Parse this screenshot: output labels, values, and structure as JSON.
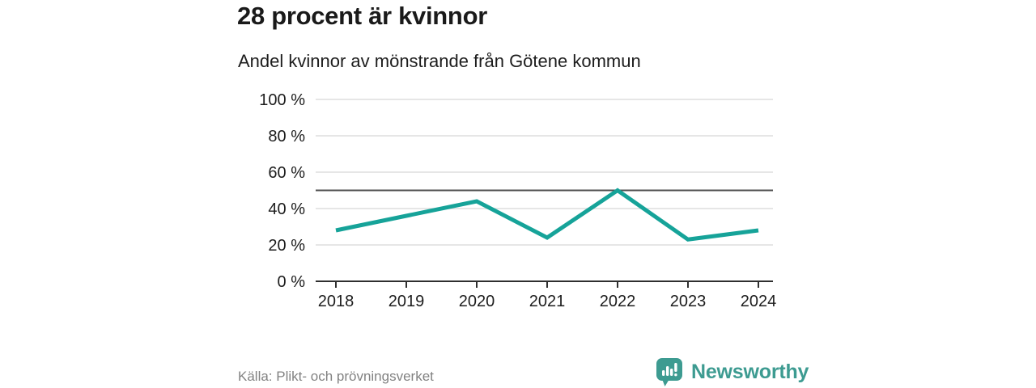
{
  "header": {
    "title": "28 procent är kvinnor",
    "subtitle": "Andel kvinnor av mönstrande från Götene kommun"
  },
  "footer": {
    "source": "Källa: Plikt- och prövningsverket",
    "brand": "Newsworthy"
  },
  "colors": {
    "line": "#16a399",
    "brand": "#3d9b91",
    "grid": "#dedede",
    "reference_line": "#4f4f4f",
    "axis": "#2f2f2f",
    "tick_text": "#1d1d1d",
    "muted_text": "#828282"
  },
  "chart_data": {
    "type": "line",
    "title": "28 procent är kvinnor",
    "subtitle": "Andel kvinnor av mönstrande från Götene kommun",
    "x": [
      "2018",
      "2019",
      "2020",
      "2021",
      "2022",
      "2023",
      "2024"
    ],
    "series": [
      {
        "name": "Andel kvinnor av mönstrande",
        "values": [
          28,
          36,
          44,
          24,
          50,
          23,
          28
        ]
      }
    ],
    "ylim": [
      0,
      100
    ],
    "yticks": [
      0,
      20,
      40,
      60,
      80,
      100
    ],
    "ytick_labels": [
      "0 %",
      "20 %",
      "40 %",
      "60 %",
      "80 %",
      "100 %"
    ],
    "ytick_suffix": " %",
    "reference_line": 50,
    "grid": true,
    "legend": false,
    "source": "Källa: Plikt- och prövningsverket"
  }
}
